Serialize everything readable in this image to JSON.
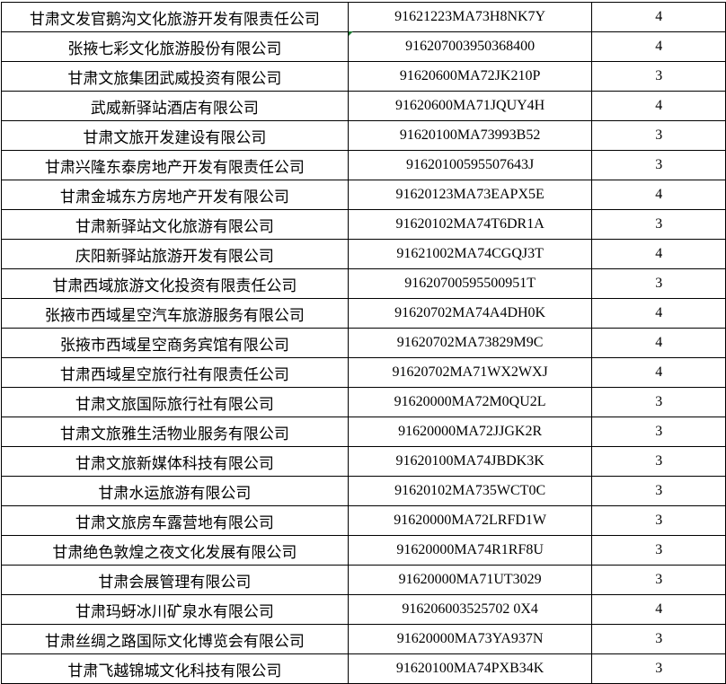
{
  "rows": [
    {
      "name": "甘肃文发官鹅沟文化旅游开发有限责任公司",
      "code": "91621223MA73H8NK7Y",
      "value": "4"
    },
    {
      "name": "张掖七彩文化旅游股份有限公司",
      "code": "916207003950368400",
      "value": "4"
    },
    {
      "name": "甘肃文旅集团武威投资有限公司",
      "code": "91620600MA72JK210P",
      "value": "3"
    },
    {
      "name": "武威新驿站酒店有限公司",
      "code": "91620600MA71JQUY4H",
      "value": "4"
    },
    {
      "name": "甘肃文旅开发建设有限公司",
      "code": "91620100MA73993B52",
      "value": "3"
    },
    {
      "name": "甘肃兴隆东泰房地产开发有限责任公司",
      "code": "91620100595507643J",
      "value": "3"
    },
    {
      "name": "甘肃金城东方房地产开发有限公司",
      "code": "91620123MA73EAPX5E",
      "value": "4"
    },
    {
      "name": "甘肃新驿站文化旅游有限公司",
      "code": "91620102MA74T6DR1A",
      "value": "3"
    },
    {
      "name": "庆阳新驿站旅游开发有限公司",
      "code": "91621002MA74CGQJ3T",
      "value": "4"
    },
    {
      "name": "甘肃西域旅游文化投资有限责任公司",
      "code": "91620700595500951T",
      "value": "3"
    },
    {
      "name": "张掖市西域星空汽车旅游服务有限公司",
      "code": "91620702MA74A4DH0K",
      "value": "4"
    },
    {
      "name": "张掖市西域星空商务宾馆有限公司",
      "code": "91620702MA73829M9C",
      "value": "4"
    },
    {
      "name": "甘肃西域星空旅行社有限责任公司",
      "code": "91620702MA71WX2WXJ",
      "value": "4"
    },
    {
      "name": "甘肃文旅国际旅行社有限公司",
      "code": "91620000MA72M0QU2L",
      "value": "3"
    },
    {
      "name": "甘肃文旅雅生活物业服务有限公司",
      "code": "91620000MA72JJGK2R",
      "value": "3"
    },
    {
      "name": "甘肃文旅新媒体科技有限公司",
      "code": "91620100MA74JBDK3K",
      "value": "3"
    },
    {
      "name": "甘肃水运旅游有限公司",
      "code": "91620102MA735WCT0C",
      "value": "3"
    },
    {
      "name": "甘肃文旅房车露营地有限公司",
      "code": "91620000MA72LRFD1W",
      "value": "3"
    },
    {
      "name": "甘肃绝色敦煌之夜文化发展有限公司",
      "code": "91620000MA74R1RF8U",
      "value": "3"
    },
    {
      "name": "甘肃会展管理有限公司",
      "code": "91620000MA71UT3029",
      "value": "3"
    },
    {
      "name": "甘肃玛蚜冰川矿泉水有限公司",
      "code": "916206003525702 0X4",
      "value": "4"
    },
    {
      "name": "甘肃丝绸之路国际文化博览会有限公司",
      "code": "91620000MA73YA937N",
      "value": "3"
    },
    {
      "name": "甘肃飞越锦城文化科技有限公司",
      "code": "91620100MA74PXB34K",
      "value": "3"
    }
  ]
}
